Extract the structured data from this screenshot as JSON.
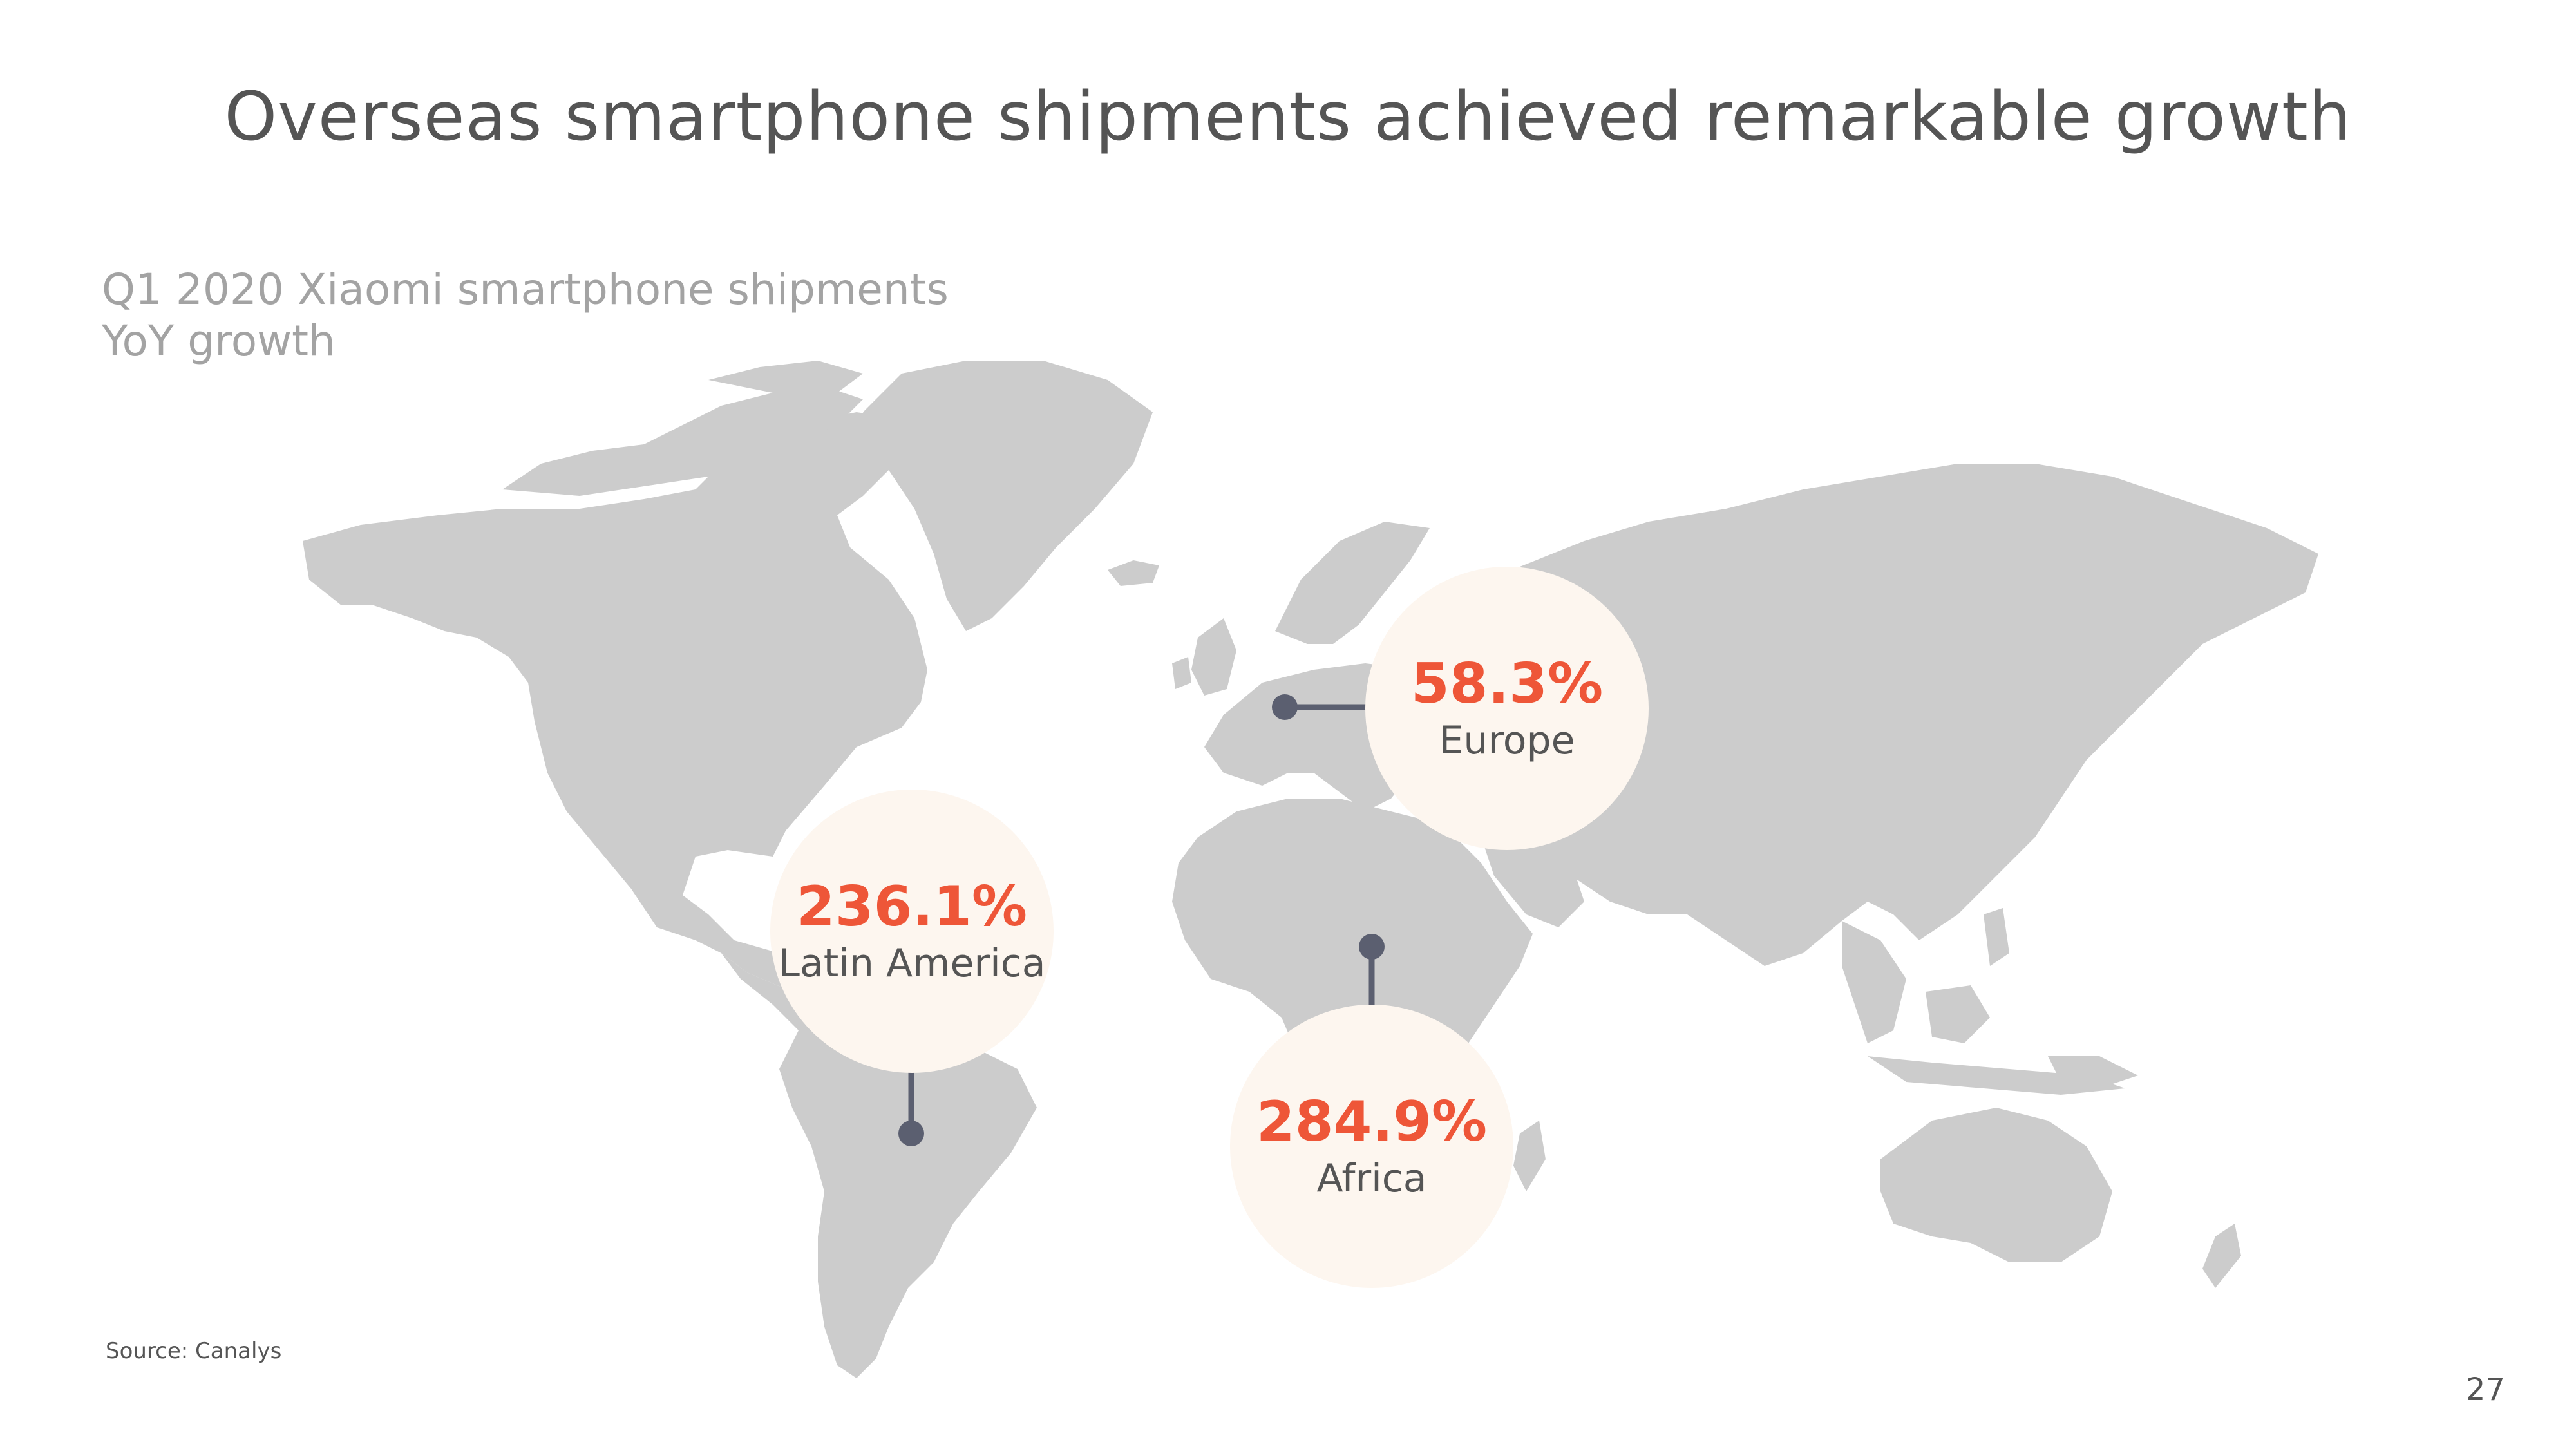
{
  "slide": {
    "title": "Overseas smartphone shipments achieved remarkable growth",
    "subtitle_line1": "Q1 2020 Xiaomi smartphone shipments",
    "subtitle_line2": "YoY growth",
    "source": "Source: Canalys",
    "page_number": "27"
  },
  "regions": [
    {
      "key": "europe",
      "value": "58.3%",
      "label": "Europe"
    },
    {
      "key": "latin_america",
      "value": "236.1%",
      "label": "Latin America"
    },
    {
      "key": "africa",
      "value": "284.9%",
      "label": "Africa"
    }
  ],
  "colors": {
    "title": "#555555",
    "subtitle": "#a3a3a3",
    "land": "#cccccc",
    "accent": "#ee5638",
    "bubble": "#fdf6ef",
    "connector": "#5b5f70"
  }
}
